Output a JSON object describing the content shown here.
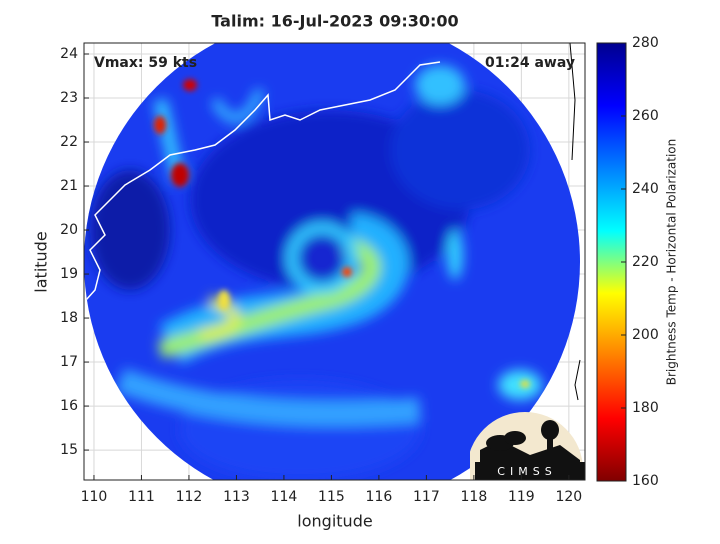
{
  "chart_data": {
    "type": "map",
    "title": "Talim: 16-Jul-2023 09:30:00",
    "annotations": [
      "Vmax: 59 kts",
      "01:24 away"
    ],
    "x_label": "longitude",
    "y_label": "latitude",
    "xlim": [
      109.79,
      120.34
    ],
    "ylim": [
      14.32,
      24.25
    ],
    "xticks": [
      110,
      111,
      112,
      113,
      114,
      115,
      116,
      117,
      118,
      119,
      120
    ],
    "yticks": [
      15,
      16,
      17,
      18,
      19,
      20,
      21,
      22,
      23,
      24
    ],
    "grid": true,
    "colorbar": {
      "label": "Brightness Temp - Horizontal Polarization",
      "lim": [
        160,
        280
      ],
      "ticks": [
        160,
        180,
        200,
        220,
        240,
        260,
        280
      ],
      "colormap": [
        "#800000",
        "#ff0000",
        "#ff8000",
        "#ffff00",
        "#00ffff",
        "#0080ff",
        "#0000ff",
        "#00008f"
      ]
    },
    "logo_text": "CIMSS"
  }
}
